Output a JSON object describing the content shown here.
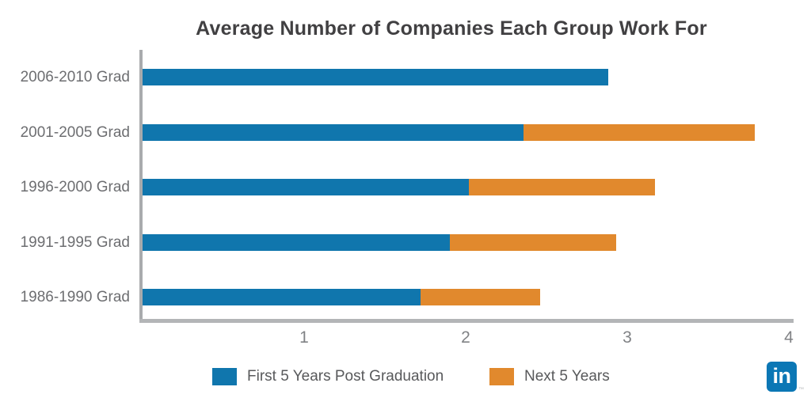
{
  "title": "Average Number of Companies Each Group Work For",
  "chart_data": {
    "type": "bar",
    "orientation": "horizontal",
    "stacked": true,
    "title": "Average Number of Companies Each Group Work For",
    "categories": [
      "2006-2010 Grad",
      "2001-2005 Grad",
      "1996-2000 Grad",
      "1991-1995 Grad",
      "1986-1990 Grad"
    ],
    "series": [
      {
        "name": "First 5 Years Post Graduation",
        "color": "#1076ad",
        "values": [
          2.88,
          2.36,
          2.02,
          1.9,
          1.72
        ]
      },
      {
        "name": "Next 5 Years",
        "color": "#e1892d",
        "values": [
          0,
          1.43,
          1.15,
          1.03,
          0.74
        ]
      }
    ],
    "totals": [
      2.88,
      3.79,
      3.17,
      2.93,
      2.46
    ],
    "xlabel": "",
    "ylabel": "",
    "xlim": [
      0,
      4
    ],
    "x_ticks": [
      "1",
      "2",
      "3",
      "4"
    ],
    "grid": false,
    "legend_position": "bottom"
  },
  "legend": {
    "first_label": "First 5 Years Post Graduation",
    "second_label": "Next 5 Years"
  },
  "branding": {
    "logo_name": "linkedin-logo",
    "logo_text": "in",
    "logo_color": "#0b77b5",
    "trademark": "™"
  },
  "colors": {
    "bar_blue": "#1076ad",
    "bar_orange": "#e1892d",
    "title_text": "#414042",
    "category_text": "#6d6e71",
    "tick_text": "#808285",
    "axis_line": "#aeb0b3",
    "legend_text": "#58595b"
  }
}
